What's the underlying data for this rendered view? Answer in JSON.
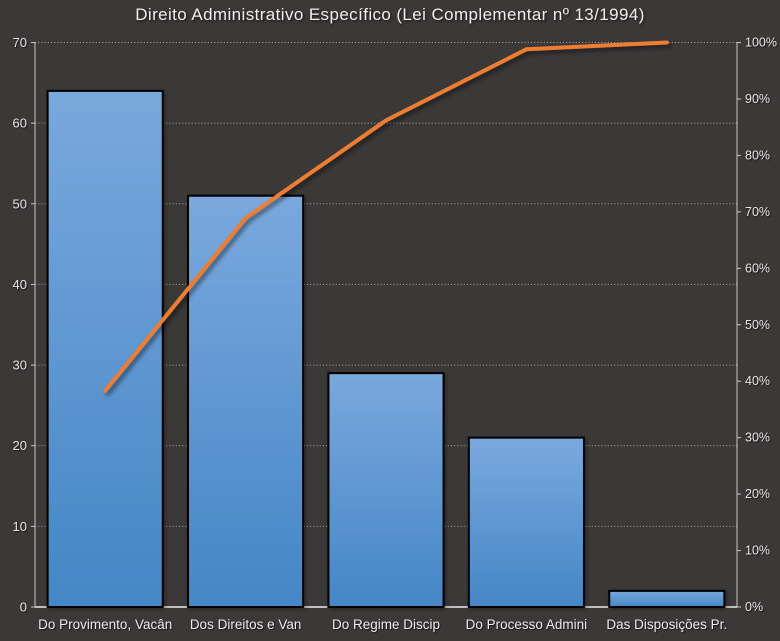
{
  "title": "Direito Administrativo Específico (Lei Complementar nº 13/1994)",
  "chart_data": {
    "type": "bar",
    "subtype": "pareto-combo-bar-line",
    "title": "Direito Administrativo Específico (Lei Complementar nº 13/1994)",
    "categories": [
      "Do Provimento, Vacân",
      "Dos Direitos e Van",
      "Do Regime Discip",
      "Do Processo Admini",
      "Das Disposições Pr."
    ],
    "series": [
      {
        "role": "bars",
        "type": "bar",
        "axis": "left",
        "values": [
          64,
          51,
          29,
          21,
          2
        ]
      },
      {
        "role": "cumulative",
        "type": "line",
        "axis": "right",
        "values": [
          38.3,
          68.9,
          86.2,
          98.8,
          100
        ]
      }
    ],
    "left_axis": {
      "min": 0,
      "max": 70,
      "step": 10,
      "tick_labels": [
        "0",
        "10",
        "20",
        "30",
        "40",
        "50",
        "60",
        "70"
      ]
    },
    "right_axis": {
      "min": 0,
      "max": 100,
      "step": 10,
      "tick_labels": [
        "0%",
        "10%",
        "20%",
        "30%",
        "40%",
        "50%",
        "60%",
        "70%",
        "80%",
        "90%",
        "100%"
      ]
    },
    "grid": "horizontal-dotted",
    "legend": "none",
    "colors": {
      "background": "#3B3838",
      "bar_gradient_top": "#7AA8DD",
      "bar_gradient_bottom": "#4486C6",
      "bar_border": "#000000",
      "line": "#ED7D31",
      "gridline": "#D2D0CE",
      "axis_line": "#C9C6C4",
      "text": "#EDEBEB"
    }
  }
}
